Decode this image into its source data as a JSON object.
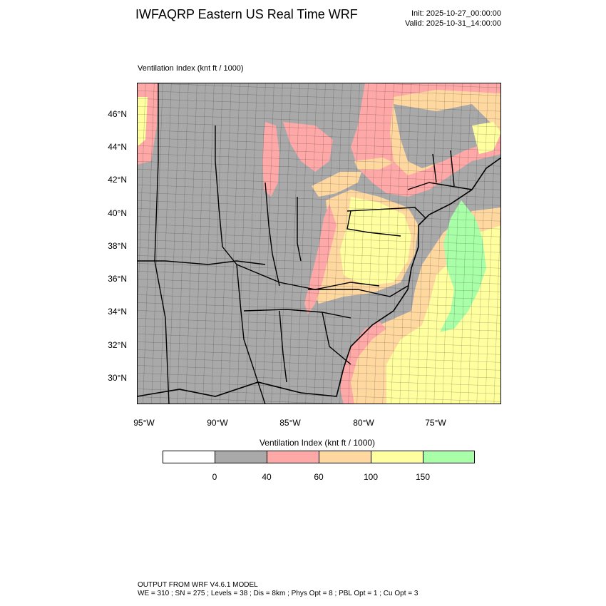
{
  "header": {
    "title": "IWFAQRP Eastern US Real Time WRF",
    "init": "Init: 2025-10-27_00:00:00",
    "valid": "Valid: 2025-10-31_14:00:00"
  },
  "map": {
    "field_label": "Ventilation Index   (knt ft / 1000)",
    "lat_labels": [
      "46°N",
      "44°N",
      "42°N",
      "40°N",
      "38°N",
      "36°N",
      "34°N",
      "32°N",
      "30°N"
    ],
    "lon_labels": [
      "95°W",
      "90°W",
      "85°W",
      "80°W",
      "75°W"
    ],
    "colors": {
      "land_low": "#a9a9a9",
      "pink": "#ffa8a8",
      "peach": "#ffd8a0",
      "yellow": "#ffff9f",
      "green": "#a8ffa8",
      "boundary": "#000000"
    }
  },
  "legend": {
    "title": "Ventilation Index  (knt ft / 1000)",
    "ticks": [
      "0",
      "40",
      "60",
      "100",
      "150"
    ],
    "colors": [
      "#ffffff",
      "#a9a9a9",
      "#ffa8a8",
      "#ffd8a0",
      "#ffff9f",
      "#a8ffa8"
    ]
  },
  "footer": {
    "line1": "OUTPUT FROM WRF V4.6.1 MODEL",
    "line2": "WE = 310 ; SN = 275 ; Levels = 38 ; Dis = 8km ; Phys Opt = 8 ; PBL Opt = 1 ; Cu Opt = 3"
  }
}
